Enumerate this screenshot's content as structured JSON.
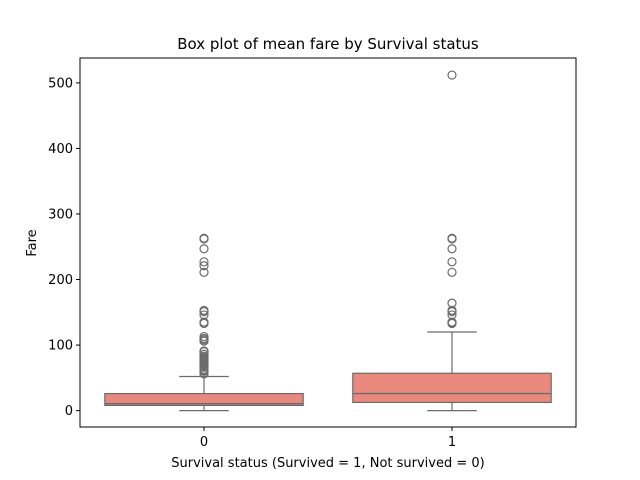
{
  "chart_data": {
    "type": "box",
    "title": "Box plot of mean fare by Survival status",
    "xlabel": "Survival status (Survived = 1, Not survived = 0)",
    "ylabel": "Fare",
    "categories": [
      "0",
      "1"
    ],
    "ylim": [
      -25,
      538
    ],
    "yticks": [
      0,
      100,
      200,
      300,
      400,
      500
    ],
    "grid": false,
    "box_color": "#e9897e",
    "line_color": "#6b6b6b",
    "boxes": [
      {
        "category": "0",
        "whisker_low": 0,
        "q1": 7.9,
        "median": 10.5,
        "q3": 26,
        "whisker_high": 52,
        "outliers": [
          56,
          57,
          60,
          61,
          62,
          63,
          66,
          70,
          71,
          72,
          74,
          76,
          77,
          78,
          79,
          80,
          82,
          83,
          86,
          90,
          91,
          106,
          108,
          110,
          113,
          133,
          135,
          146,
          151,
          153,
          211,
          221,
          227,
          247,
          262,
          263
        ]
      },
      {
        "category": "1",
        "whisker_low": 0,
        "q1": 12.5,
        "median": 26,
        "q3": 57,
        "whisker_high": 120,
        "outliers": [
          133,
          134,
          135,
          146,
          151,
          153,
          164,
          211,
          227,
          247,
          262,
          263,
          512
        ]
      }
    ]
  }
}
